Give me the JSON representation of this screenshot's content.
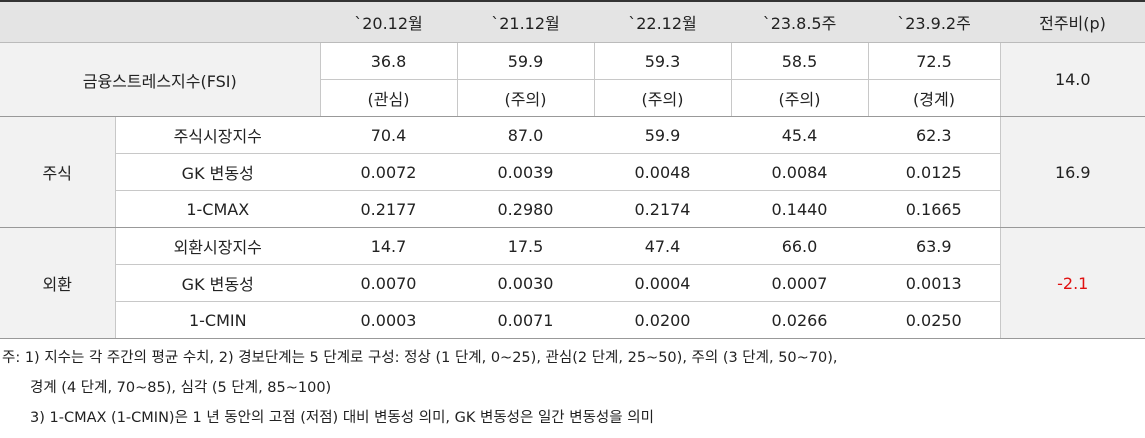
{
  "header": {
    "columns": [
      "`20.12월",
      "`21.12월",
      "`22.12월",
      "`23.8.5주",
      "`23.9.2주",
      "전주비(p)"
    ]
  },
  "fsi": {
    "label": "금융스트레스지수(FSI)",
    "values": [
      "36.8",
      "59.9",
      "59.3",
      "58.5",
      "72.5"
    ],
    "levels": [
      "(관심)",
      "(주의)",
      "(주의)",
      "(주의)",
      "(경계)"
    ],
    "change": "14.0"
  },
  "stock": {
    "label": "주식",
    "rows": [
      {
        "label": "주식시장지수",
        "values": [
          "70.4",
          "87.0",
          "59.9",
          "45.4",
          "62.3"
        ]
      },
      {
        "label": "GK 변동성",
        "values": [
          "0.0072",
          "0.0039",
          "0.0048",
          "0.0084",
          "0.0125"
        ]
      },
      {
        "label": "1-CMAX",
        "values": [
          "0.2177",
          "0.2980",
          "0.2174",
          "0.1440",
          "0.1665"
        ]
      }
    ],
    "change": "16.9"
  },
  "fx": {
    "label": "외환",
    "rows": [
      {
        "label": "외환시장지수",
        "values": [
          "14.7",
          "17.5",
          "47.4",
          "66.0",
          "63.9"
        ]
      },
      {
        "label": "GK 변동성",
        "values": [
          "0.0070",
          "0.0030",
          "0.0004",
          "0.0007",
          "0.0013"
        ]
      },
      {
        "label": "1-CMIN",
        "values": [
          "0.0003",
          "0.0071",
          "0.0200",
          "0.0266",
          "0.0250"
        ]
      }
    ],
    "change": "-2.1"
  },
  "notes": [
    "주: 1) 지수는 각 주간의 평균 수치, 2) 경보단계는 5 단계로 구성: 정상 (1 단계, 0~25), 관심(2 단계, 25~50), 주의 (3 단계, 50~70),",
    "경계 (4 단계, 70~85), 심각 (5 단계, 85~100)",
    "3) 1-CMAX (1-CMIN)은 1 년 동안의 고점 (저점) 대비 변동성 의미, GK 변동성은 일간 변동성을 의미"
  ]
}
